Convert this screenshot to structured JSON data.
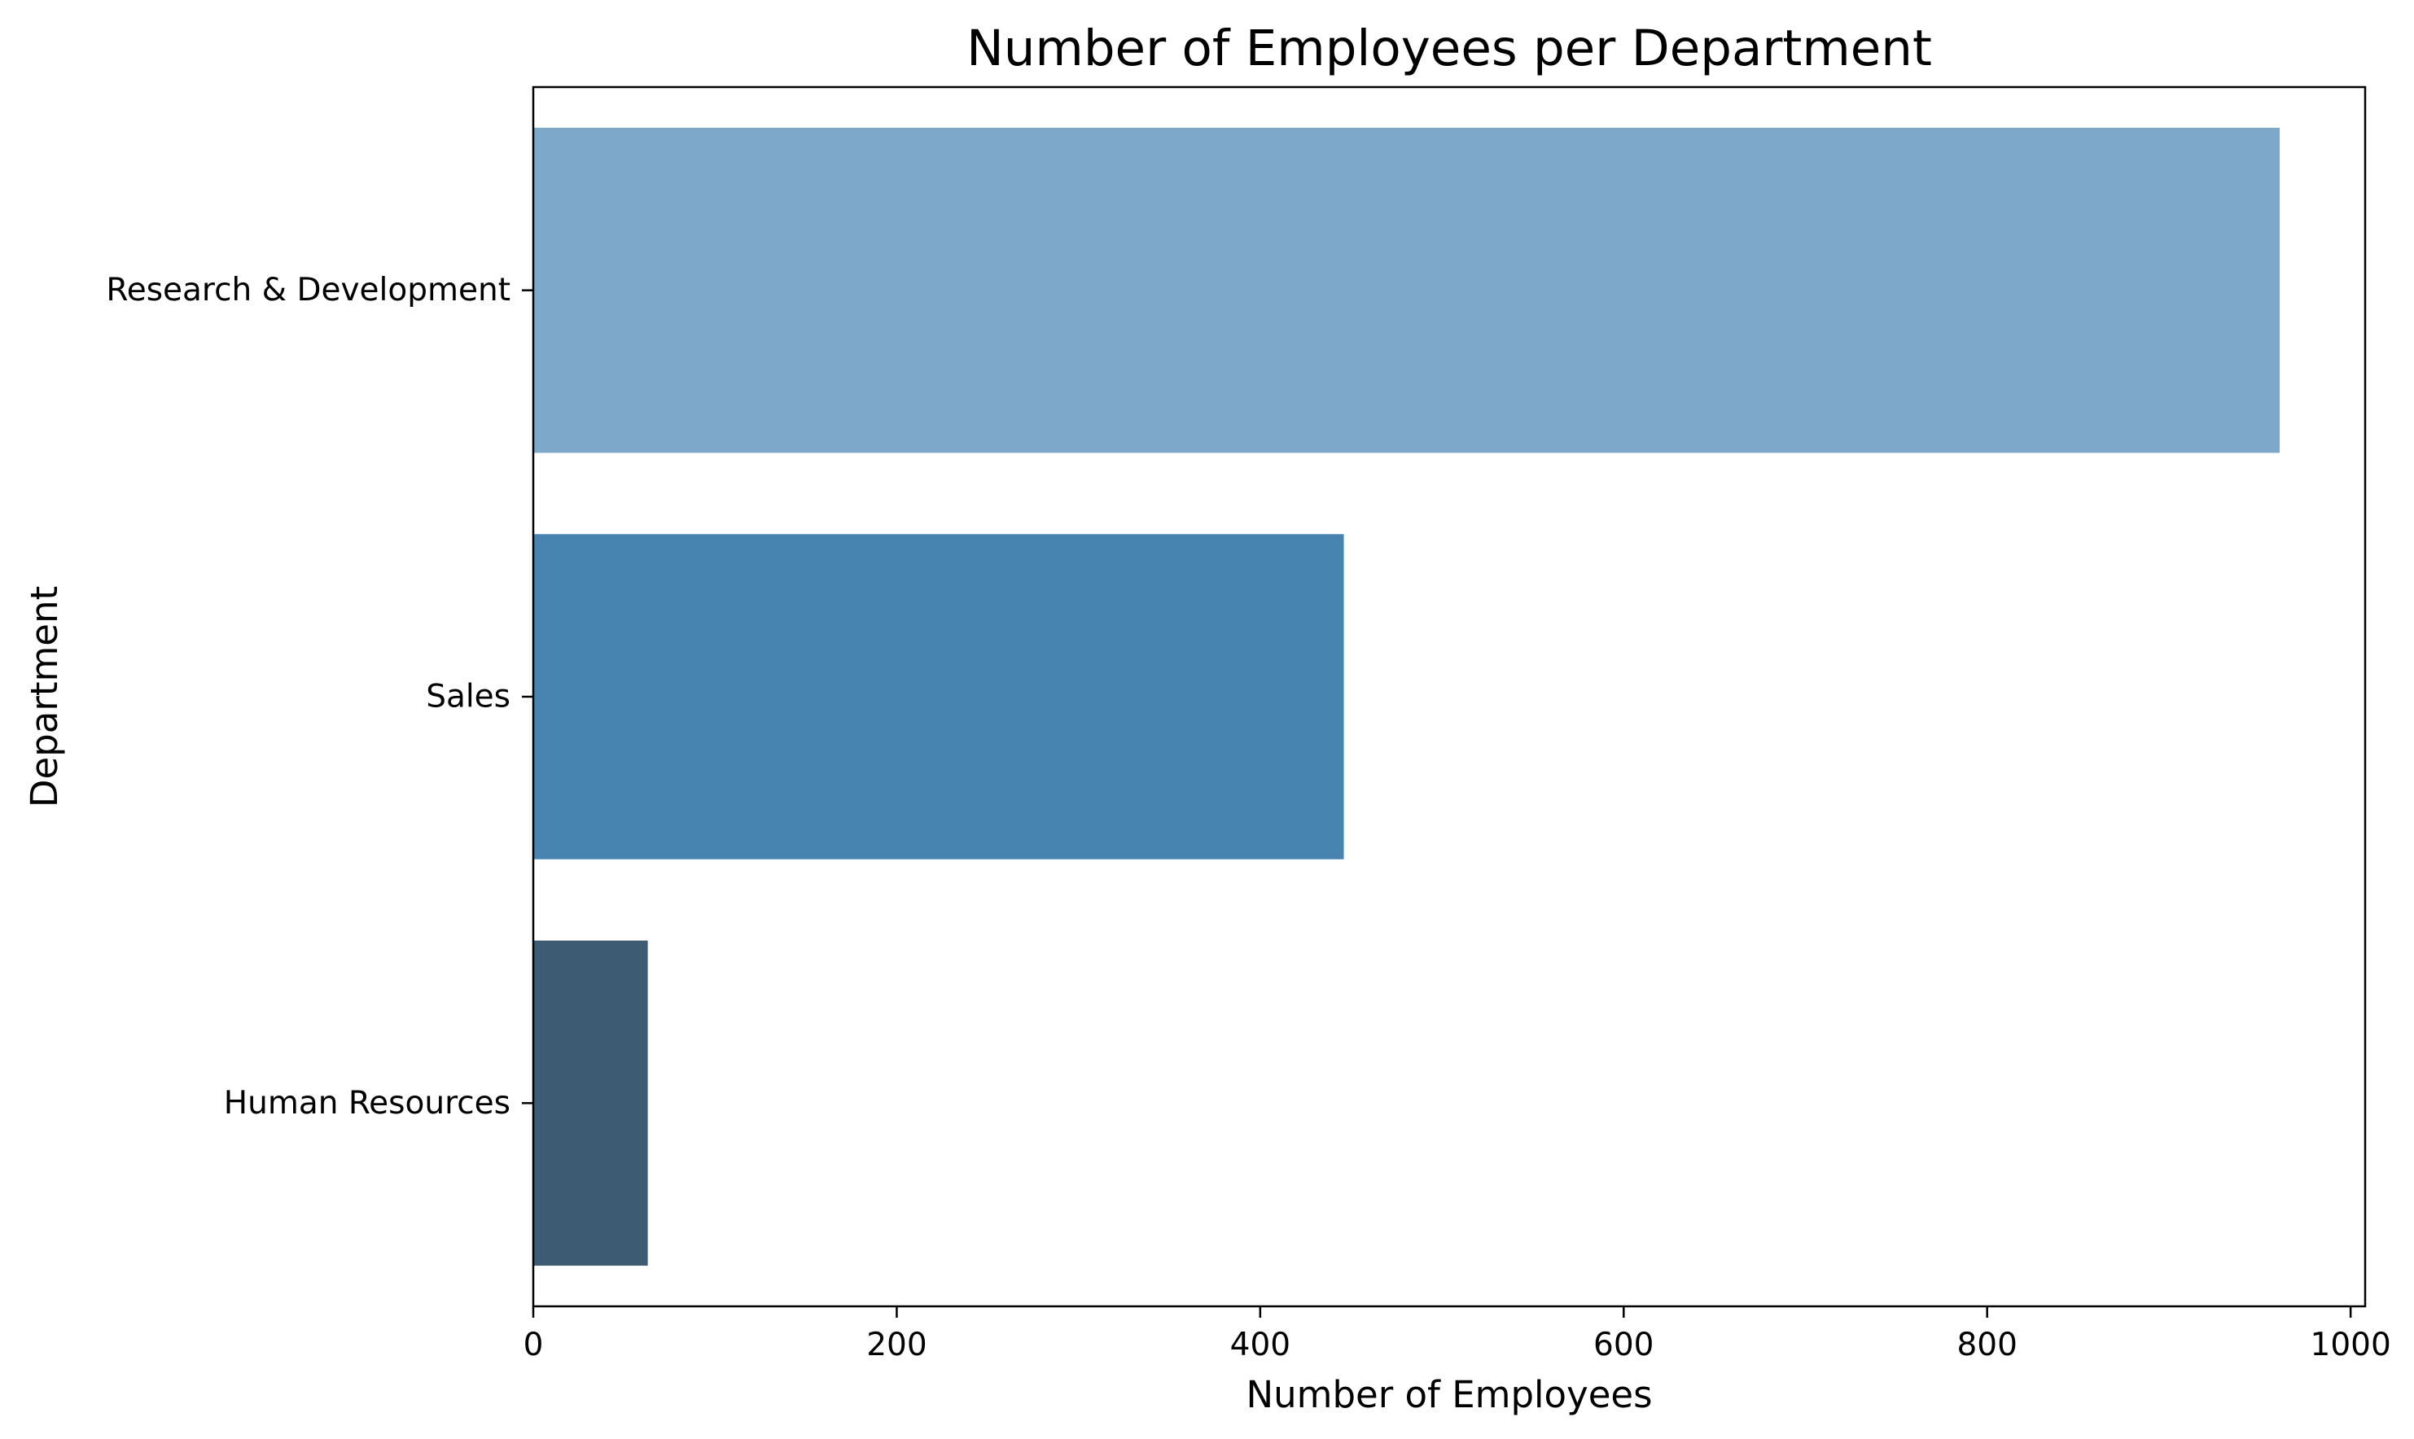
{
  "chart_data": {
    "type": "bar",
    "orientation": "horizontal",
    "title": "Number of Employees per Department",
    "xlabel": "Number of Employees",
    "ylabel": "Department",
    "categories": [
      "Research & Development",
      "Sales",
      "Human Resources"
    ],
    "values": [
      961,
      446,
      63
    ],
    "colors": [
      "#7ea8c9",
      "#4884b0",
      "#3d5c73"
    ],
    "xlim": [
      0,
      1008
    ],
    "xticks": [
      0,
      200,
      400,
      600,
      800,
      1000
    ],
    "grid": false,
    "legend": "none"
  }
}
